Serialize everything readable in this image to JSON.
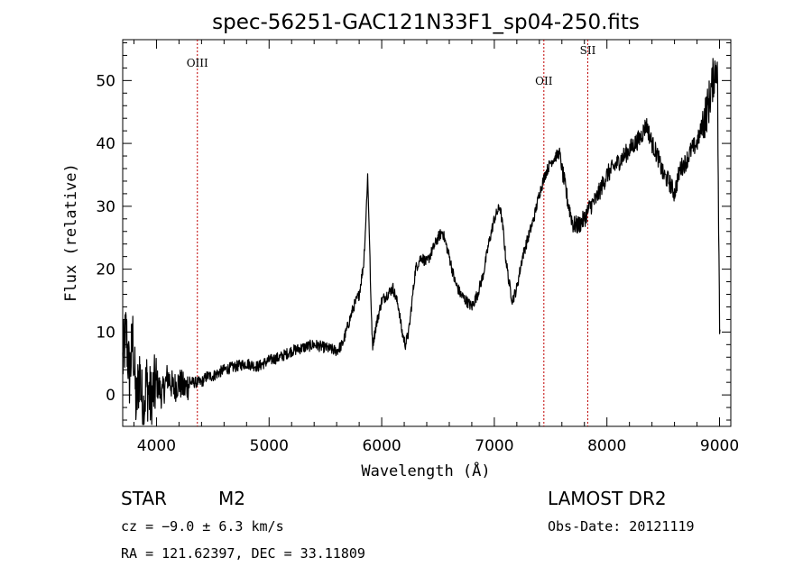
{
  "chart_data": {
    "type": "line",
    "title": "spec-56251-GAC121N33F1_sp04-250.fits",
    "xlabel": "Wavelength (Å)",
    "ylabel": "Flux (relative)",
    "xlim": [
      3700,
      9100
    ],
    "ylim": [
      -5,
      56.5
    ],
    "xticks": [
      4000,
      5000,
      6000,
      7000,
      8000,
      9000
    ],
    "yticks": [
      0,
      10,
      20,
      30,
      40,
      50
    ],
    "grid": false,
    "series": [
      {
        "x": [
          3700,
          3730,
          3760,
          3790,
          3820,
          3850,
          3880,
          3910,
          3950,
          4000,
          4050,
          4100,
          4150,
          4200,
          4250,
          4300,
          4350,
          4400,
          4450,
          4500,
          4600,
          4700,
          4800,
          4900,
          5000,
          5100,
          5200,
          5300,
          5400,
          5500,
          5600,
          5650,
          5700,
          5750,
          5800,
          5840,
          5860,
          5875,
          5890,
          5905,
          5920,
          5950,
          6000,
          6050,
          6100,
          6150,
          6180,
          6210,
          6240,
          6270,
          6300,
          6350,
          6400,
          6450,
          6500,
          6540,
          6570,
          6600,
          6650,
          6700,
          6750,
          6800,
          6850,
          6900,
          6950,
          7000,
          7050,
          7080,
          7100,
          7130,
          7160,
          7200,
          7250,
          7300,
          7350,
          7400,
          7450,
          7500,
          7550,
          7580,
          7600,
          7650,
          7700,
          7750,
          7800,
          7850,
          7900,
          7950,
          8000,
          8050,
          8100,
          8150,
          8200,
          8250,
          8300,
          8350,
          8400,
          8450,
          8500,
          8550,
          8600,
          8650,
          8700,
          8750,
          8800,
          8850,
          8900,
          8920,
          8950,
          8980,
          9000
        ],
        "y": [
          5,
          10,
          3,
          9,
          -2,
          4,
          -3,
          2,
          -1,
          2,
          0,
          3,
          1,
          2,
          1,
          2,
          2,
          2,
          3,
          3,
          4,
          4.5,
          5,
          4.5,
          5.5,
          6,
          7,
          7.5,
          8,
          7.5,
          7,
          8,
          11,
          14,
          16,
          21,
          28,
          35,
          26,
          14,
          8,
          11,
          15,
          16,
          17,
          14,
          10,
          8,
          10,
          15,
          20,
          22,
          21,
          23,
          25,
          26,
          24,
          22,
          18,
          16,
          15,
          14,
          16,
          19,
          24,
          28,
          30,
          26,
          22,
          18,
          15,
          17,
          22,
          25,
          28,
          32,
          35,
          37,
          38,
          38.5,
          36,
          31,
          27,
          27,
          28,
          30,
          31,
          33,
          35,
          36,
          37,
          38,
          39,
          40,
          41,
          43,
          40,
          38,
          35,
          34,
          32,
          36,
          37,
          39,
          40,
          43,
          46,
          48,
          51,
          53,
          10
        ]
      }
    ],
    "lines": [
      {
        "label": "OIII",
        "x": 4363
      },
      {
        "label": "OII",
        "x": 7440
      },
      {
        "label": "SII",
        "x": 7830
      }
    ]
  },
  "info": {
    "class_label": "STAR",
    "subclass": "M2",
    "survey": "LAMOST DR2",
    "cz": "cz = −9.0 ± 6.3 km/s",
    "obsdate": "Obs-Date: 20121119",
    "coords": "RA = 121.62397, DEC =  33.11809"
  }
}
